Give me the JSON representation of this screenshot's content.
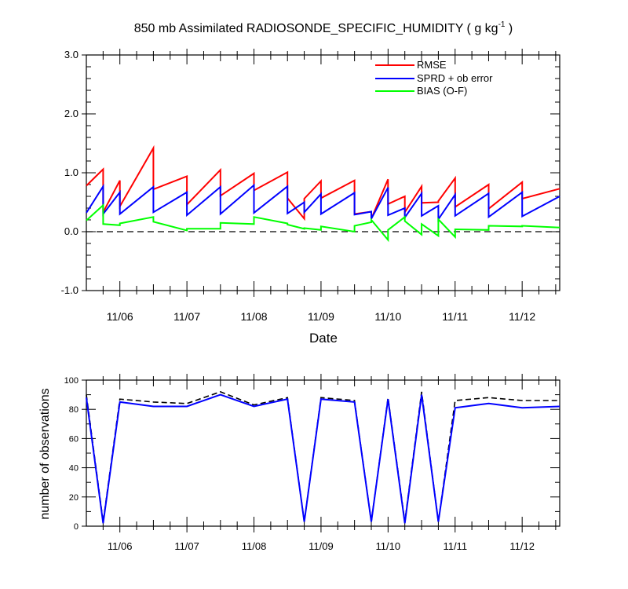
{
  "chart_data": [
    {
      "type": "line",
      "title": "850 mb Assimilated RADIOSONDE_SPECIFIC_HUMIDITY ( g kg",
      "title_exponent": "-1",
      "title_suffix": " )",
      "xlabel": "Date",
      "ylabel": "",
      "x_ticks": [
        "11/06",
        "11/07",
        "11/08",
        "11/09",
        "11/10",
        "11/11",
        "11/12"
      ],
      "y_ticks": [
        "3.0",
        "2.0",
        "1.0",
        "0.0",
        "-1.0"
      ],
      "ylim": [
        -1.0,
        3.0
      ],
      "xlim": [
        5.5,
        12.56
      ],
      "zero_line": "dashed",
      "legend_position": "top-right",
      "series": [
        {
          "name": "RMSE",
          "color": "#ff0000",
          "x": [
            5.5,
            5.75,
            5.75,
            6.0,
            6.0,
            6.5,
            6.5,
            7.0,
            7.0,
            7.5,
            7.5,
            8.0,
            8.0,
            8.5,
            8.5,
            8.75,
            8.75,
            9.0,
            9.0,
            9.5,
            9.5,
            9.75,
            9.75,
            10.0,
            10.0,
            10.25,
            10.25,
            10.5,
            10.5,
            10.75,
            10.75,
            11.0,
            11.0,
            11.5,
            11.5,
            12.0,
            12.0,
            12.56
          ],
          "y": [
            0.78,
            1.06,
            0.33,
            0.87,
            0.43,
            1.42,
            0.72,
            0.94,
            0.46,
            1.05,
            0.61,
            0.99,
            0.7,
            1.01,
            0.57,
            0.22,
            0.56,
            0.86,
            0.57,
            0.87,
            0.3,
            0.34,
            0.22,
            0.89,
            0.47,
            0.6,
            0.33,
            0.77,
            0.49,
            0.5,
            0.52,
            0.91,
            0.42,
            0.8,
            0.39,
            0.84,
            0.56,
            0.73
          ]
        },
        {
          "name": "SPRD + ob error",
          "color": "#0000ff",
          "x": [
            5.5,
            5.75,
            5.75,
            6.0,
            6.0,
            6.5,
            6.5,
            7.0,
            7.0,
            7.5,
            7.5,
            8.0,
            8.0,
            8.5,
            8.5,
            8.75,
            8.75,
            9.0,
            9.0,
            9.5,
            9.5,
            9.75,
            9.75,
            10.0,
            10.0,
            10.25,
            10.25,
            10.5,
            10.5,
            10.75,
            10.75,
            11.0,
            11.0,
            11.5,
            11.5,
            12.0,
            12.0,
            12.56
          ],
          "y": [
            0.32,
            0.77,
            0.3,
            0.67,
            0.3,
            0.76,
            0.33,
            0.67,
            0.28,
            0.76,
            0.3,
            0.79,
            0.32,
            0.77,
            0.31,
            0.5,
            0.33,
            0.64,
            0.3,
            0.66,
            0.29,
            0.34,
            0.22,
            0.75,
            0.28,
            0.4,
            0.24,
            0.65,
            0.27,
            0.44,
            0.21,
            0.63,
            0.27,
            0.65,
            0.25,
            0.67,
            0.26,
            0.6
          ]
        },
        {
          "name": "BIAS (O-F)",
          "color": "#00ff00",
          "x": [
            5.5,
            5.75,
            5.75,
            6.0,
            6.0,
            6.5,
            6.5,
            7.0,
            7.0,
            7.5,
            7.5,
            8.0,
            8.0,
            8.5,
            8.5,
            8.75,
            8.75,
            9.0,
            9.0,
            9.5,
            9.5,
            9.75,
            9.75,
            10.0,
            10.0,
            10.25,
            10.25,
            10.5,
            10.5,
            10.75,
            10.75,
            11.0,
            11.0,
            11.5,
            11.5,
            12.0,
            12.0,
            12.56
          ],
          "y": [
            0.19,
            0.45,
            0.13,
            0.11,
            0.14,
            0.25,
            0.17,
            0.02,
            0.05,
            0.05,
            0.15,
            0.13,
            0.25,
            0.14,
            0.12,
            0.05,
            0.06,
            0.03,
            0.09,
            0.0,
            0.1,
            0.16,
            0.2,
            -0.14,
            0.03,
            0.25,
            0.18,
            -0.05,
            0.13,
            -0.07,
            0.21,
            -0.09,
            0.04,
            0.03,
            0.1,
            0.09,
            0.1,
            0.07
          ]
        }
      ]
    },
    {
      "type": "line",
      "title": "",
      "xlabel": "",
      "ylabel": "number of observations",
      "x_ticks": [
        "11/06",
        "11/07",
        "11/08",
        "11/09",
        "11/10",
        "11/11",
        "11/12"
      ],
      "y_ticks": [
        "100",
        "80",
        "60",
        "40",
        "20",
        "0"
      ],
      "ylim": [
        0,
        100
      ],
      "xlim": [
        5.5,
        12.56
      ],
      "series": [
        {
          "name": "",
          "color": "#000000",
          "style": "dashed",
          "x": [
            5.5,
            5.75,
            6.0,
            6.5,
            7.0,
            7.5,
            8.0,
            8.5,
            8.75,
            9.0,
            9.5,
            9.75,
            10.0,
            10.25,
            10.5,
            10.75,
            11.0,
            11.5,
            12.0,
            12.56
          ],
          "y": [
            90,
            3,
            87,
            85,
            84,
            92,
            83,
            88,
            3,
            88,
            86,
            3,
            88,
            3,
            92,
            3,
            86,
            88,
            86,
            86
          ]
        },
        {
          "name": "",
          "color": "#0000ff",
          "style": "solid",
          "x": [
            5.5,
            5.75,
            6.0,
            6.5,
            7.0,
            7.5,
            8.0,
            8.5,
            8.75,
            9.0,
            9.5,
            9.75,
            10.0,
            10.25,
            10.5,
            10.75,
            11.0,
            11.5,
            12.0,
            12.56
          ],
          "y": [
            88,
            2,
            85,
            82,
            82,
            90,
            82,
            87,
            3,
            87,
            85,
            3,
            87,
            2,
            90,
            3,
            81,
            84,
            81,
            82
          ]
        }
      ]
    }
  ]
}
